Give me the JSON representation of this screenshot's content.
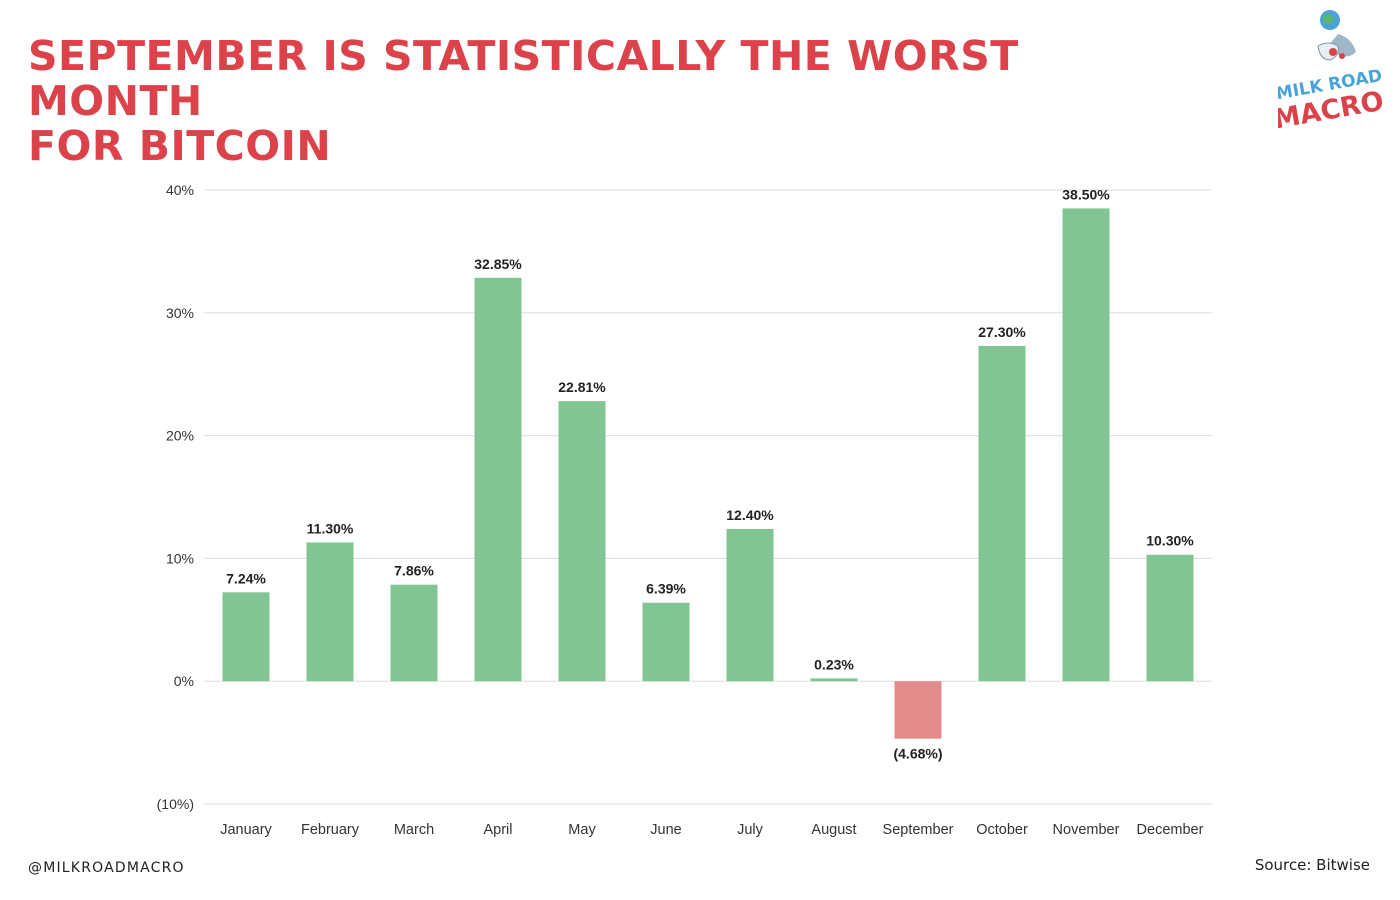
{
  "header": {
    "title_line1": "September is statistically the worst month",
    "title_line2": "for Bitcoin",
    "title_color": "#dc4249"
  },
  "logo": {
    "line1": "MILK ROAD",
    "line2": "MACRO",
    "color_top": "#4aa3d8",
    "color_bottom": "#dc4249"
  },
  "footer": {
    "handle": "@MILKROADMACRO",
    "source": "Source: Bitwise"
  },
  "colors": {
    "positive": "#82c595",
    "negative": "#e38b8b",
    "grid": "#dddddd"
  },
  "chart_data": {
    "type": "bar",
    "title": "September is statistically the worst month for Bitcoin",
    "xlabel": "",
    "ylabel": "",
    "categories": [
      "January",
      "February",
      "March",
      "April",
      "May",
      "June",
      "July",
      "August",
      "September",
      "October",
      "November",
      "December"
    ],
    "values": [
      7.24,
      11.3,
      7.86,
      32.85,
      22.81,
      6.39,
      12.4,
      0.23,
      -4.68,
      27.3,
      38.5,
      10.3
    ],
    "data_labels": [
      "7.24%",
      "11.30%",
      "7.86%",
      "32.85%",
      "22.81%",
      "6.39%",
      "12.40%",
      "0.23%",
      "(4.68%)",
      "27.30%",
      "38.50%",
      "10.30%"
    ],
    "ylim": [
      -10,
      40
    ],
    "yticks": [
      -10,
      0,
      10,
      20,
      30,
      40
    ],
    "ytick_labels": [
      "(10%)",
      "0%",
      "10%",
      "20%",
      "30%",
      "40%"
    ],
    "grid": true,
    "legend": "none"
  }
}
